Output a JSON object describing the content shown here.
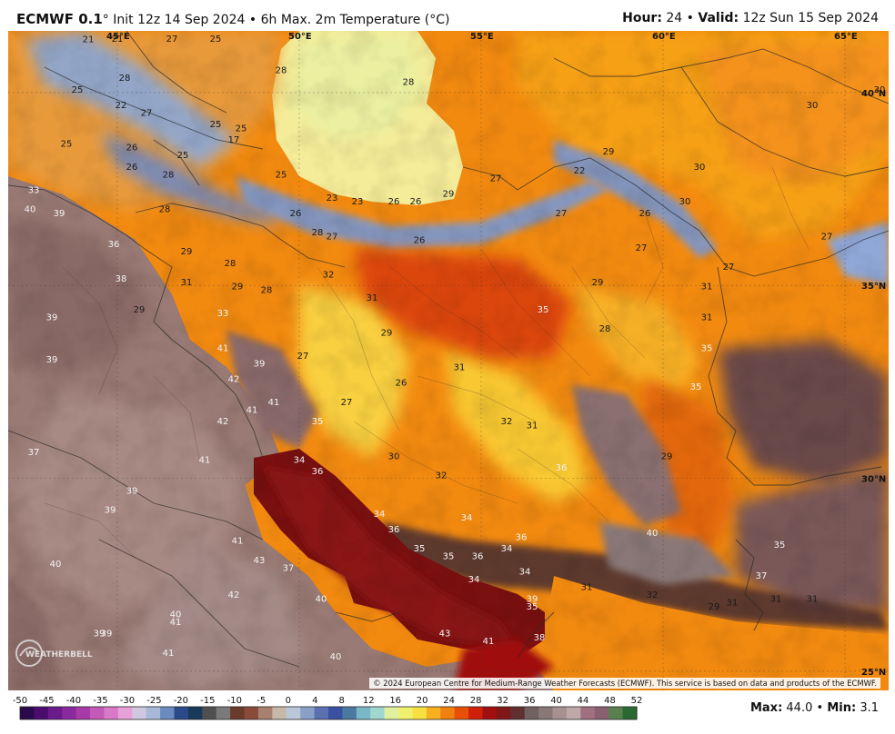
{
  "header": {
    "brand": "ECMWF 0.1",
    "degree": "°",
    "init": "Init 12z 14 Sep 2024",
    "separator": "•",
    "product": "6h Max. 2m Temperature (°C)",
    "hour_label": "Hour:",
    "hour_value": "24",
    "valid_label": "Valid:",
    "valid_value": "12z Sun 15 Sep 2024"
  },
  "map": {
    "lon_labels": [
      {
        "text": "45°E",
        "lon": 45
      },
      {
        "text": "50°E",
        "lon": 50
      },
      {
        "text": "55°E",
        "lon": 55
      },
      {
        "text": "60°E",
        "lon": 60
      },
      {
        "text": "65°E",
        "lon": 65
      }
    ],
    "lat_labels": [
      {
        "text": "40°N",
        "lat": 40
      },
      {
        "text": "35°N",
        "lat": 35
      },
      {
        "text": "30°N",
        "lat": 30
      },
      {
        "text": "25°N",
        "lat": 25
      }
    ],
    "temp_labels": [
      {
        "v": "21",
        "lon": 44.2,
        "lat": 41.3
      },
      {
        "v": "21",
        "lon": 45.0,
        "lat": 41.5
      },
      {
        "v": "27",
        "lon": 46.5,
        "lat": 41.5
      },
      {
        "v": "25",
        "lon": 47.7,
        "lat": 41.6
      },
      {
        "v": "28",
        "lon": 49.5,
        "lat": 40.5
      },
      {
        "v": "28",
        "lon": 53.0,
        "lat": 40.2
      },
      {
        "v": "25",
        "lon": 43.9,
        "lat": 40.0
      },
      {
        "v": "28",
        "lon": 45.2,
        "lat": 40.3
      },
      {
        "v": "22",
        "lon": 45.1,
        "lat": 39.6
      },
      {
        "v": "27",
        "lon": 45.8,
        "lat": 39.4
      },
      {
        "v": "25",
        "lon": 47.7,
        "lat": 39.1
      },
      {
        "v": "25",
        "lon": 48.4,
        "lat": 39.0
      },
      {
        "v": "25",
        "lon": 43.6,
        "lat": 38.6
      },
      {
        "v": "26",
        "lon": 45.4,
        "lat": 38.5
      },
      {
        "v": "25",
        "lon": 46.8,
        "lat": 38.3
      },
      {
        "v": "17",
        "lon": 48.2,
        "lat": 38.7
      },
      {
        "v": "26",
        "lon": 45.4,
        "lat": 38.0
      },
      {
        "v": "28",
        "lon": 46.4,
        "lat": 37.8
      },
      {
        "v": "25",
        "lon": 49.5,
        "lat": 37.8
      },
      {
        "v": "23",
        "lon": 50.9,
        "lat": 37.2
      },
      {
        "v": "23",
        "lon": 51.6,
        "lat": 37.1
      },
      {
        "v": "26",
        "lon": 52.6,
        "lat": 37.1
      },
      {
        "v": "26",
        "lon": 53.2,
        "lat": 37.1
      },
      {
        "v": "29",
        "lon": 54.1,
        "lat": 37.3
      },
      {
        "v": "27",
        "lon": 55.4,
        "lat": 37.7
      },
      {
        "v": "22",
        "lon": 57.7,
        "lat": 37.9
      },
      {
        "v": "29",
        "lon": 58.5,
        "lat": 38.4
      },
      {
        "v": "30",
        "lon": 61.0,
        "lat": 38.0
      },
      {
        "v": "30",
        "lon": 64.1,
        "lat": 39.6
      },
      {
        "v": "30",
        "lon": 66.0,
        "lat": 40.0
      },
      {
        "v": "33",
        "lon": 42.7,
        "lat": 37.4
      },
      {
        "v": "40",
        "lon": 42.6,
        "lat": 36.9
      },
      {
        "v": "39",
        "lon": 43.4,
        "lat": 36.8
      },
      {
        "v": "28",
        "lon": 46.3,
        "lat": 36.9
      },
      {
        "v": "26",
        "lon": 49.9,
        "lat": 36.8
      },
      {
        "v": "28",
        "lon": 50.5,
        "lat": 36.3
      },
      {
        "v": "27",
        "lon": 50.9,
        "lat": 36.2
      },
      {
        "v": "26",
        "lon": 53.3,
        "lat": 36.1
      },
      {
        "v": "27",
        "lon": 57.2,
        "lat": 36.8
      },
      {
        "v": "26",
        "lon": 59.5,
        "lat": 36.8
      },
      {
        "v": "30",
        "lon": 60.6,
        "lat": 37.1
      },
      {
        "v": "27",
        "lon": 59.4,
        "lat": 35.9
      },
      {
        "v": "27",
        "lon": 64.5,
        "lat": 36.2
      },
      {
        "v": "27",
        "lon": 61.8,
        "lat": 35.4
      },
      {
        "v": "36",
        "lon": 44.9,
        "lat": 36.0
      },
      {
        "v": "29",
        "lon": 46.9,
        "lat": 35.8
      },
      {
        "v": "28",
        "lon": 48.1,
        "lat": 35.5
      },
      {
        "v": "38",
        "lon": 45.1,
        "lat": 35.1
      },
      {
        "v": "31",
        "lon": 46.9,
        "lat": 35.0
      },
      {
        "v": "29",
        "lon": 48.3,
        "lat": 34.9
      },
      {
        "v": "28",
        "lon": 49.1,
        "lat": 34.8
      },
      {
        "v": "32",
        "lon": 50.8,
        "lat": 35.2
      },
      {
        "v": "31",
        "lon": 52.0,
        "lat": 34.6
      },
      {
        "v": "29",
        "lon": 58.2,
        "lat": 35.0
      },
      {
        "v": "31",
        "lon": 61.2,
        "lat": 34.9
      },
      {
        "v": "35",
        "lon": 56.7,
        "lat": 34.3
      },
      {
        "v": "29",
        "lon": 45.6,
        "lat": 34.3
      },
      {
        "v": "33",
        "lon": 47.9,
        "lat": 34.2
      },
      {
        "v": "39",
        "lon": 43.2,
        "lat": 34.1
      },
      {
        "v": "31",
        "lon": 61.2,
        "lat": 34.1
      },
      {
        "v": "28",
        "lon": 58.4,
        "lat": 33.8
      },
      {
        "v": "29",
        "lon": 52.4,
        "lat": 33.7
      },
      {
        "v": "35",
        "lon": 61.2,
        "lat": 33.3
      },
      {
        "v": "41",
        "lon": 47.9,
        "lat": 33.3
      },
      {
        "v": "27",
        "lon": 50.1,
        "lat": 33.1
      },
      {
        "v": "39",
        "lon": 43.2,
        "lat": 33.0
      },
      {
        "v": "39",
        "lon": 48.9,
        "lat": 32.9
      },
      {
        "v": "31",
        "lon": 54.4,
        "lat": 32.8
      },
      {
        "v": "42",
        "lon": 48.2,
        "lat": 32.5
      },
      {
        "v": "26",
        "lon": 52.8,
        "lat": 32.4
      },
      {
        "v": "35",
        "lon": 60.9,
        "lat": 32.3
      },
      {
        "v": "41",
        "lon": 48.7,
        "lat": 31.7
      },
      {
        "v": "41",
        "lon": 49.3,
        "lat": 31.9
      },
      {
        "v": "27",
        "lon": 51.3,
        "lat": 31.9
      },
      {
        "v": "42",
        "lon": 47.9,
        "lat": 31.4
      },
      {
        "v": "35",
        "lon": 50.5,
        "lat": 31.4
      },
      {
        "v": "32",
        "lon": 55.7,
        "lat": 31.4
      },
      {
        "v": "31",
        "lon": 56.4,
        "lat": 31.3
      },
      {
        "v": "37",
        "lon": 42.7,
        "lat": 30.6
      },
      {
        "v": "30",
        "lon": 52.6,
        "lat": 30.5
      },
      {
        "v": "29",
        "lon": 60.1,
        "lat": 30.5
      },
      {
        "v": "41",
        "lon": 47.4,
        "lat": 30.4
      },
      {
        "v": "34",
        "lon": 50.0,
        "lat": 30.4
      },
      {
        "v": "36",
        "lon": 57.2,
        "lat": 30.2
      },
      {
        "v": "36",
        "lon": 50.5,
        "lat": 30.1
      },
      {
        "v": "32",
        "lon": 53.9,
        "lat": 30.0
      },
      {
        "v": "39",
        "lon": 45.4,
        "lat": 29.6
      },
      {
        "v": "39",
        "lon": 44.8,
        "lat": 29.1
      },
      {
        "v": "34",
        "lon": 52.2,
        "lat": 29.0
      },
      {
        "v": "34",
        "lon": 54.6,
        "lat": 28.9
      },
      {
        "v": "36",
        "lon": 52.6,
        "lat": 28.6
      },
      {
        "v": "40",
        "lon": 59.7,
        "lat": 28.5
      },
      {
        "v": "36",
        "lon": 56.1,
        "lat": 28.4
      },
      {
        "v": "41",
        "lon": 48.3,
        "lat": 28.3
      },
      {
        "v": "35",
        "lon": 63.2,
        "lat": 28.2
      },
      {
        "v": "35",
        "lon": 53.3,
        "lat": 28.1
      },
      {
        "v": "34",
        "lon": 55.7,
        "lat": 28.1
      },
      {
        "v": "35",
        "lon": 54.1,
        "lat": 27.9
      },
      {
        "v": "36",
        "lon": 54.9,
        "lat": 27.9
      },
      {
        "v": "40",
        "lon": 43.3,
        "lat": 27.7
      },
      {
        "v": "43",
        "lon": 48.9,
        "lat": 27.8
      },
      {
        "v": "37",
        "lon": 49.7,
        "lat": 27.6
      },
      {
        "v": "34",
        "lon": 56.2,
        "lat": 27.5
      },
      {
        "v": "34",
        "lon": 54.8,
        "lat": 27.3
      },
      {
        "v": "37",
        "lon": 62.7,
        "lat": 27.4
      },
      {
        "v": "31",
        "lon": 57.9,
        "lat": 27.1
      },
      {
        "v": "42",
        "lon": 48.2,
        "lat": 26.9
      },
      {
        "v": "40",
        "lon": 50.6,
        "lat": 26.8
      },
      {
        "v": "32",
        "lon": 59.7,
        "lat": 26.9
      },
      {
        "v": "39",
        "lon": 56.4,
        "lat": 26.8
      },
      {
        "v": "35",
        "lon": 56.4,
        "lat": 26.6
      },
      {
        "v": "29",
        "lon": 61.4,
        "lat": 26.6
      },
      {
        "v": "31",
        "lon": 61.9,
        "lat": 26.7
      },
      {
        "v": "31",
        "lon": 63.1,
        "lat": 26.8
      },
      {
        "v": "31",
        "lon": 64.1,
        "lat": 26.8
      },
      {
        "v": "40",
        "lon": 46.6,
        "lat": 26.4
      },
      {
        "v": "41",
        "lon": 46.6,
        "lat": 26.2
      },
      {
        "v": "39",
        "lon": 44.5,
        "lat": 25.9
      },
      {
        "v": "39",
        "lon": 44.7,
        "lat": 25.9
      },
      {
        "v": "43",
        "lon": 54.0,
        "lat": 25.9
      },
      {
        "v": "41",
        "lon": 55.2,
        "lat": 25.7
      },
      {
        "v": "38",
        "lon": 56.6,
        "lat": 25.8
      },
      {
        "v": "41",
        "lon": 46.4,
        "lat": 25.4
      },
      {
        "v": "40",
        "lon": 51.0,
        "lat": 25.3
      }
    ],
    "copyright": "© 2024 European Centre for Medium-Range Weather Forecasts (ECMWF). This service is based on data and products of the ECMWF.",
    "logo_text": "WEATHERBELL"
  },
  "legend": {
    "ticks": [
      "-50",
      "-45",
      "-40",
      "-35",
      "-30",
      "-25",
      "-20",
      "-15",
      "-10",
      "-5",
      "0",
      "4",
      "8",
      "12",
      "16",
      "20",
      "24",
      "28",
      "32",
      "36",
      "40",
      "44",
      "48",
      "52"
    ],
    "max_label": "Max:",
    "max_value": "44.0",
    "dot": "•",
    "min_label": "Min:",
    "min_value": "3.1",
    "colors": [
      "#2a0a4a",
      "#4a0d6e",
      "#6a1a8a",
      "#8a2a9e",
      "#a83aa8",
      "#c45ab8",
      "#d87ac8",
      "#e8a0d8",
      "#d0c8e0",
      "#a8b8d8",
      "#6a8ac0",
      "#2a4a8a",
      "#1a3a5a",
      "#505050",
      "#7a7a7a",
      "#6a3a2a",
      "#8a4a3a",
      "#a88070",
      "#c8b8a8",
      "#b8c8d8",
      "#8aa0c8",
      "#5a70b0",
      "#3a50a0",
      "#4a7aa0",
      "#7ab8c8",
      "#a0d8d0",
      "#e0f0a0",
      "#f0f070",
      "#f8e040",
      "#f8b020",
      "#f08010",
      "#e85008",
      "#d02008",
      "#a01010",
      "#801818",
      "#603030",
      "#706060",
      "#8a7878",
      "#a89090",
      "#c0a8a8",
      "#a07080",
      "#886070",
      "#5a8050",
      "#2a6a30"
    ]
  }
}
